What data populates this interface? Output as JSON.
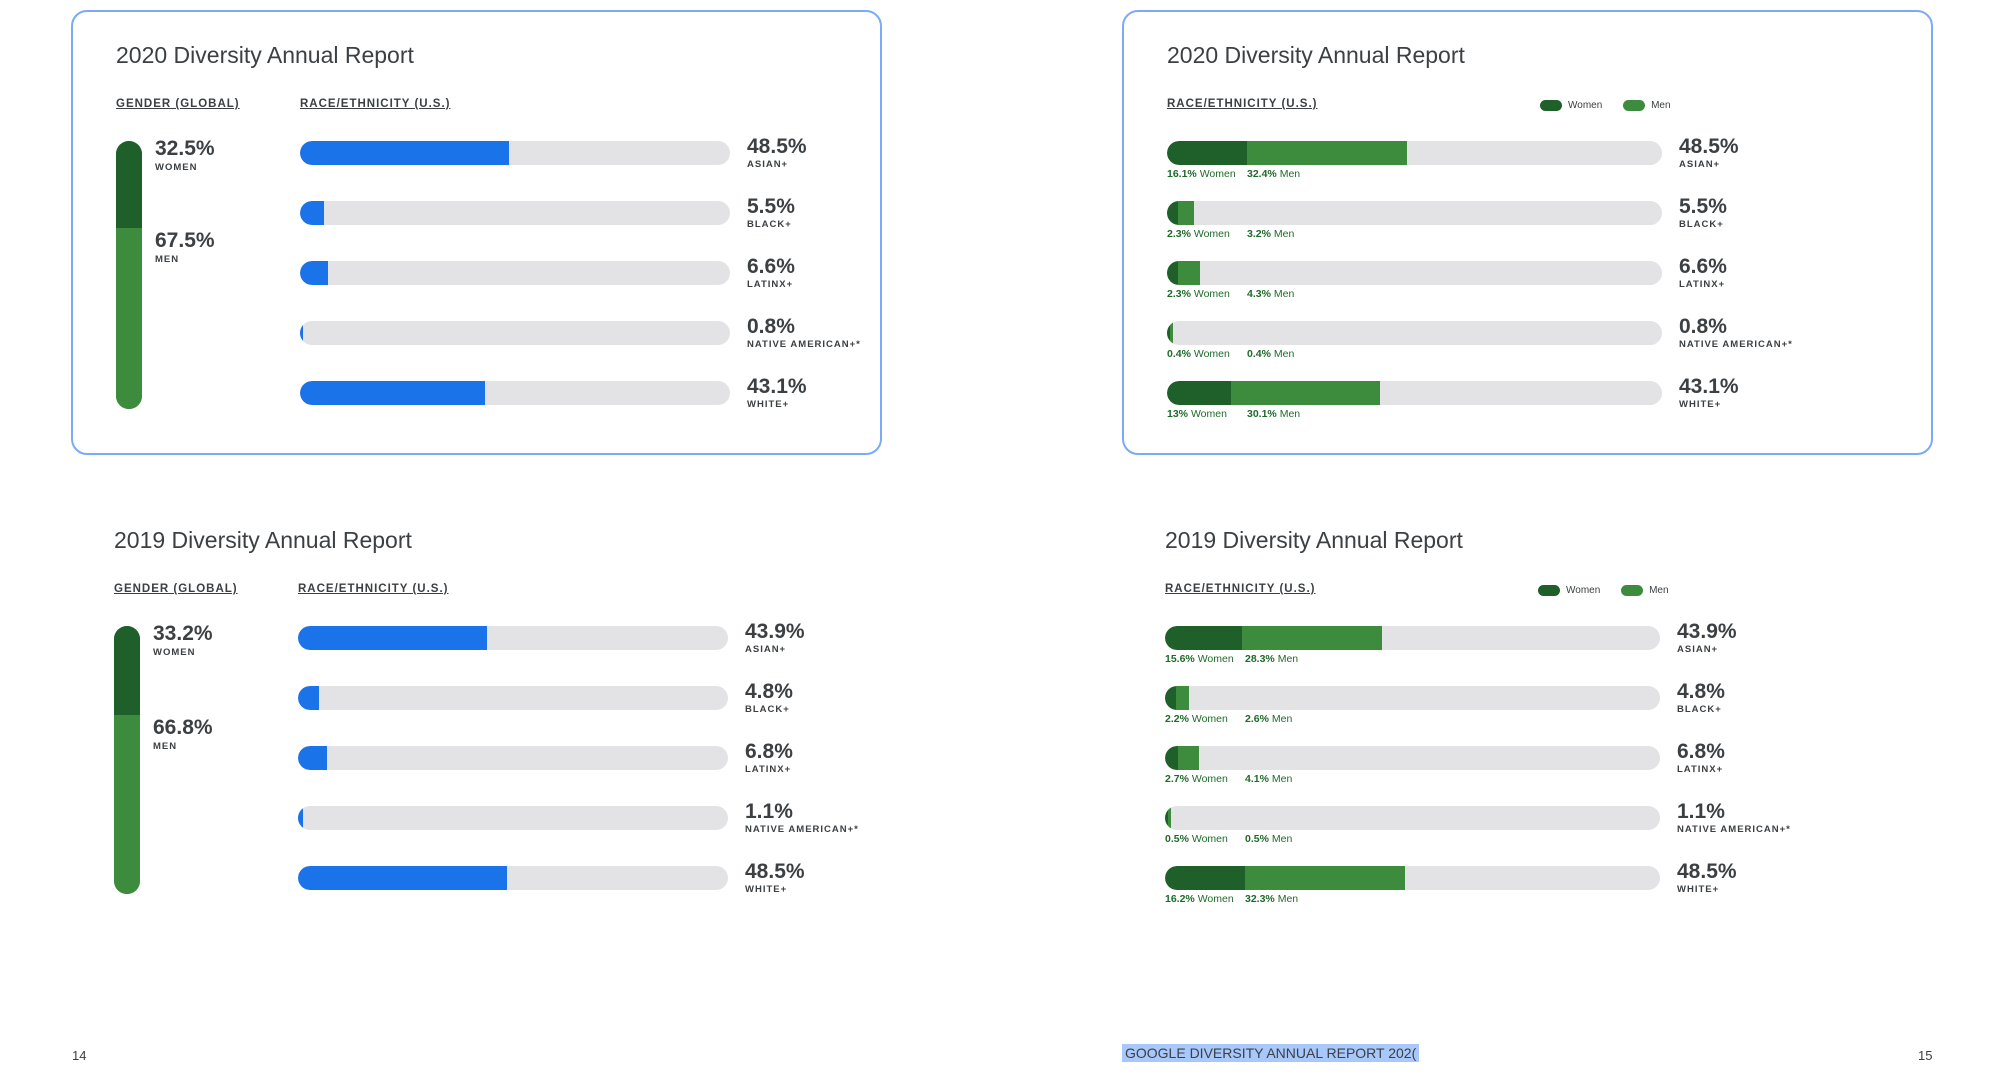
{
  "colors": {
    "blue": "#1a73e8",
    "women": "#1e5f2a",
    "men": "#3d8c3e",
    "track": "#e3e3e5",
    "border": "#7baaf7"
  },
  "headers": {
    "gender": "GENDER (GLOBAL)",
    "race": "RACE/ETHNICITY (U.S.)"
  },
  "legend": {
    "women": "Women",
    "men": "Men"
  },
  "footer": {
    "page_left": "14",
    "page_right": "15",
    "doc_title": "GOOGLE DIVERSITY ANNUAL REPORT 202("
  },
  "chart_data": [
    {
      "type": "bar",
      "id": "tl",
      "title": "2020 Diversity Annual Report",
      "variant": "blue",
      "gender": {
        "women": 32.5,
        "men": 67.5,
        "women_text": "32.5%",
        "men_text": "67.5%",
        "women_label": "WOMEN",
        "men_label": "MEN"
      },
      "categories": [
        "ASIAN+",
        "BLACK+",
        "LATINX+",
        "NATIVE AMERICAN+*",
        "WHITE+"
      ],
      "values": [
        48.5,
        5.5,
        6.6,
        0.8,
        43.1
      ],
      "labels": [
        "48.5%",
        "5.5%",
        "6.6%",
        "0.8%",
        "43.1%"
      ],
      "xlim": [
        0,
        100
      ]
    },
    {
      "type": "bar",
      "id": "tr",
      "title": "2020 Diversity Annual Report",
      "variant": "stacked",
      "categories": [
        "ASIAN+",
        "BLACK+",
        "LATINX+",
        "NATIVE AMERICAN+*",
        "WHITE+"
      ],
      "values": [
        48.5,
        5.5,
        6.6,
        0.8,
        43.1
      ],
      "labels": [
        "48.5%",
        "5.5%",
        "6.6%",
        "0.8%",
        "43.1%"
      ],
      "series": [
        {
          "name": "Women",
          "values": [
            16.1,
            2.3,
            2.3,
            0.4,
            13
          ],
          "labels": [
            "16.1%",
            "2.3%",
            "2.3%",
            "0.4%",
            "13%"
          ]
        },
        {
          "name": "Men",
          "values": [
            32.4,
            3.2,
            4.3,
            0.4,
            30.1
          ],
          "labels": [
            "32.4%",
            "3.2%",
            "4.3%",
            "0.4%",
            "30.1%"
          ]
        }
      ],
      "xlim": [
        0,
        100
      ]
    },
    {
      "type": "bar",
      "id": "bl",
      "title": "2019 Diversity Annual Report",
      "variant": "blue",
      "gender": {
        "women": 33.2,
        "men": 66.8,
        "women_text": "33.2%",
        "men_text": "66.8%",
        "women_label": "WOMEN",
        "men_label": "MEN"
      },
      "categories": [
        "ASIAN+",
        "BLACK+",
        "LATINX+",
        "NATIVE AMERICAN+*",
        "WHITE+"
      ],
      "values": [
        43.9,
        4.8,
        6.8,
        1.1,
        48.5
      ],
      "labels": [
        "43.9%",
        "4.8%",
        "6.8%",
        "1.1%",
        "48.5%"
      ],
      "xlim": [
        0,
        100
      ]
    },
    {
      "type": "bar",
      "id": "br",
      "title": "2019 Diversity Annual Report",
      "variant": "stacked",
      "categories": [
        "ASIAN+",
        "BLACK+",
        "LATINX+",
        "NATIVE AMERICAN+*",
        "WHITE+"
      ],
      "values": [
        43.9,
        4.8,
        6.8,
        1.1,
        48.5
      ],
      "labels": [
        "43.9%",
        "4.8%",
        "6.8%",
        "1.1%",
        "48.5%"
      ],
      "series": [
        {
          "name": "Women",
          "values": [
            15.6,
            2.2,
            2.7,
            0.5,
            16.2
          ],
          "labels": [
            "15.6%",
            "2.2%",
            "2.7%",
            "0.5%",
            "16.2%"
          ]
        },
        {
          "name": "Men",
          "values": [
            28.3,
            2.6,
            4.1,
            0.5,
            32.3
          ],
          "labels": [
            "28.3%",
            "2.6%",
            "4.1%",
            "0.5%",
            "32.3%"
          ]
        }
      ],
      "xlim": [
        0,
        100
      ]
    }
  ]
}
